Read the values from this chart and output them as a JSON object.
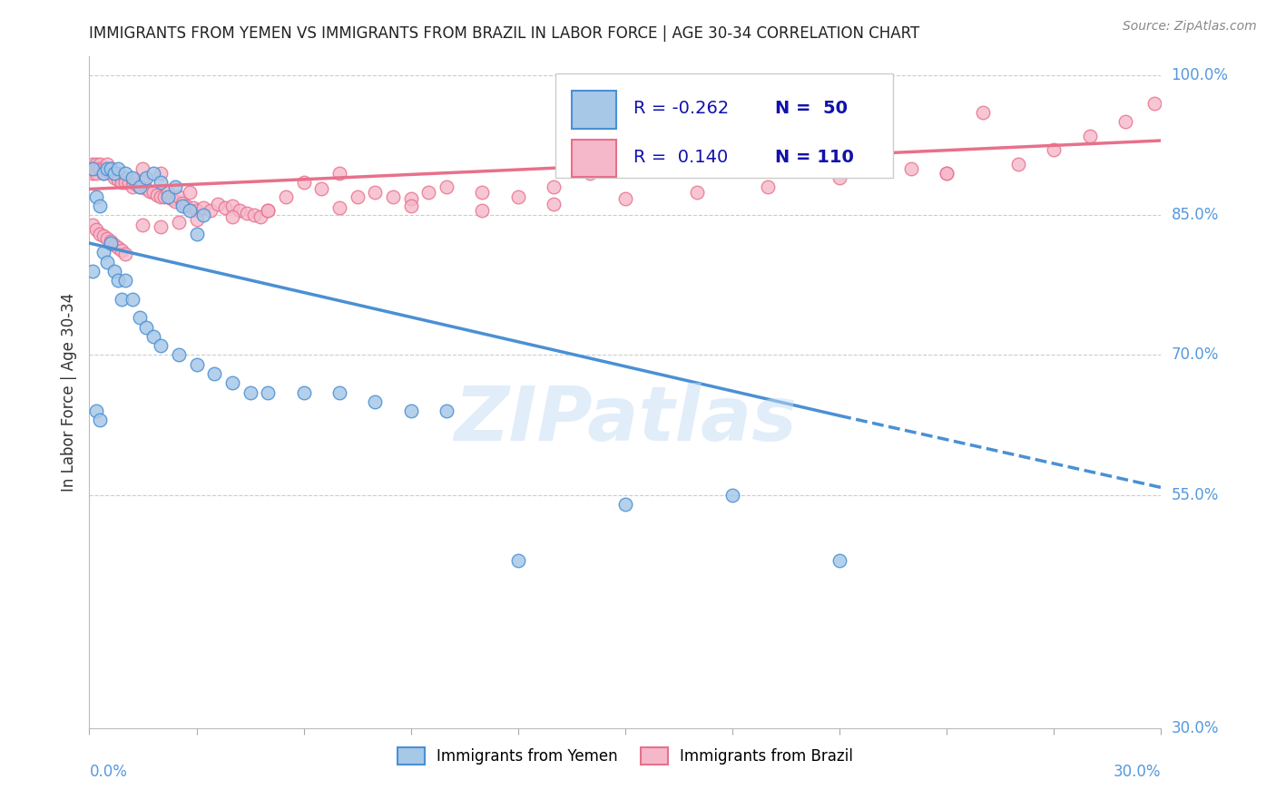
{
  "title": "IMMIGRANTS FROM YEMEN VS IMMIGRANTS FROM BRAZIL IN LABOR FORCE | AGE 30-34 CORRELATION CHART",
  "source": "Source: ZipAtlas.com",
  "ylabel": "In Labor Force | Age 30-34",
  "watermark": "ZIPatlas",
  "legend_r_yemen": "R = -0.262",
  "legend_n_yemen": "N =  50",
  "legend_r_brazil": "R =  0.140",
  "legend_n_brazil": "N = 110",
  "yemen_color": "#a8c8e8",
  "brazil_color": "#f5b8cb",
  "line_yemen_color": "#4a90d4",
  "line_brazil_color": "#e8708a",
  "background_color": "#ffffff",
  "xmin": 0.0,
  "xmax": 0.3,
  "ymin": 0.3,
  "ymax": 1.02,
  "yemen_x": [
    0.001,
    0.002,
    0.003,
    0.004,
    0.005,
    0.006,
    0.007,
    0.008,
    0.01,
    0.012,
    0.014,
    0.016,
    0.018,
    0.02,
    0.022,
    0.024,
    0.026,
    0.028,
    0.03,
    0.032,
    0.001,
    0.002,
    0.003,
    0.004,
    0.005,
    0.006,
    0.007,
    0.008,
    0.009,
    0.01,
    0.012,
    0.014,
    0.016,
    0.018,
    0.02,
    0.025,
    0.03,
    0.035,
    0.04,
    0.045,
    0.05,
    0.06,
    0.07,
    0.08,
    0.09,
    0.1,
    0.12,
    0.15,
    0.18,
    0.21
  ],
  "yemen_y": [
    0.9,
    0.87,
    0.86,
    0.895,
    0.9,
    0.9,
    0.895,
    0.9,
    0.895,
    0.89,
    0.88,
    0.89,
    0.895,
    0.885,
    0.87,
    0.88,
    0.86,
    0.855,
    0.83,
    0.85,
    0.79,
    0.64,
    0.63,
    0.81,
    0.8,
    0.82,
    0.79,
    0.78,
    0.76,
    0.78,
    0.76,
    0.74,
    0.73,
    0.72,
    0.71,
    0.7,
    0.69,
    0.68,
    0.67,
    0.66,
    0.66,
    0.66,
    0.66,
    0.65,
    0.64,
    0.64,
    0.48,
    0.54,
    0.55,
    0.48
  ],
  "brazil_x": [
    0.001,
    0.001,
    0.001,
    0.002,
    0.002,
    0.002,
    0.003,
    0.003,
    0.004,
    0.004,
    0.005,
    0.005,
    0.006,
    0.006,
    0.007,
    0.007,
    0.008,
    0.008,
    0.009,
    0.009,
    0.01,
    0.01,
    0.011,
    0.012,
    0.012,
    0.013,
    0.014,
    0.015,
    0.015,
    0.016,
    0.017,
    0.018,
    0.019,
    0.02,
    0.02,
    0.021,
    0.022,
    0.023,
    0.024,
    0.025,
    0.026,
    0.027,
    0.028,
    0.029,
    0.03,
    0.032,
    0.034,
    0.036,
    0.038,
    0.04,
    0.042,
    0.044,
    0.046,
    0.048,
    0.05,
    0.055,
    0.06,
    0.065,
    0.07,
    0.075,
    0.08,
    0.085,
    0.09,
    0.095,
    0.1,
    0.11,
    0.12,
    0.13,
    0.14,
    0.15,
    0.16,
    0.17,
    0.18,
    0.19,
    0.2,
    0.21,
    0.22,
    0.23,
    0.24,
    0.25,
    0.001,
    0.002,
    0.003,
    0.004,
    0.005,
    0.006,
    0.007,
    0.008,
    0.009,
    0.01,
    0.015,
    0.02,
    0.025,
    0.03,
    0.04,
    0.05,
    0.07,
    0.09,
    0.11,
    0.13,
    0.15,
    0.17,
    0.19,
    0.21,
    0.24,
    0.26,
    0.27,
    0.28,
    0.29,
    0.298
  ],
  "brazil_y": [
    0.905,
    0.9,
    0.895,
    0.905,
    0.9,
    0.895,
    0.905,
    0.9,
    0.9,
    0.895,
    0.905,
    0.898,
    0.9,
    0.895,
    0.895,
    0.89,
    0.895,
    0.888,
    0.89,
    0.885,
    0.89,
    0.885,
    0.885,
    0.888,
    0.88,
    0.883,
    0.88,
    0.9,
    0.885,
    0.878,
    0.876,
    0.875,
    0.872,
    0.895,
    0.87,
    0.87,
    0.875,
    0.868,
    0.865,
    0.87,
    0.863,
    0.86,
    0.875,
    0.858,
    0.855,
    0.858,
    0.855,
    0.862,
    0.858,
    0.86,
    0.855,
    0.852,
    0.85,
    0.848,
    0.855,
    0.87,
    0.885,
    0.878,
    0.895,
    0.87,
    0.875,
    0.87,
    0.868,
    0.875,
    0.88,
    0.875,
    0.87,
    0.88,
    0.895,
    0.91,
    0.9,
    0.928,
    0.92,
    0.915,
    0.91,
    0.905,
    0.905,
    0.9,
    0.895,
    0.96,
    0.84,
    0.835,
    0.83,
    0.828,
    0.825,
    0.822,
    0.818,
    0.815,
    0.812,
    0.808,
    0.84,
    0.838,
    0.842,
    0.845,
    0.848,
    0.855,
    0.858,
    0.86,
    0.855,
    0.862,
    0.868,
    0.875,
    0.88,
    0.89,
    0.895,
    0.905,
    0.92,
    0.935,
    0.95,
    0.97
  ],
  "yemen_line_x0": 0.0,
  "yemen_line_y0": 0.82,
  "yemen_line_x1": 0.21,
  "yemen_line_y1": 0.635,
  "yemen_line_dash_x1": 0.3,
  "yemen_line_dash_y1": 0.558,
  "brazil_line_x0": 0.0,
  "brazil_line_y0": 0.878,
  "brazil_line_x1": 0.3,
  "brazil_line_y1": 0.93
}
